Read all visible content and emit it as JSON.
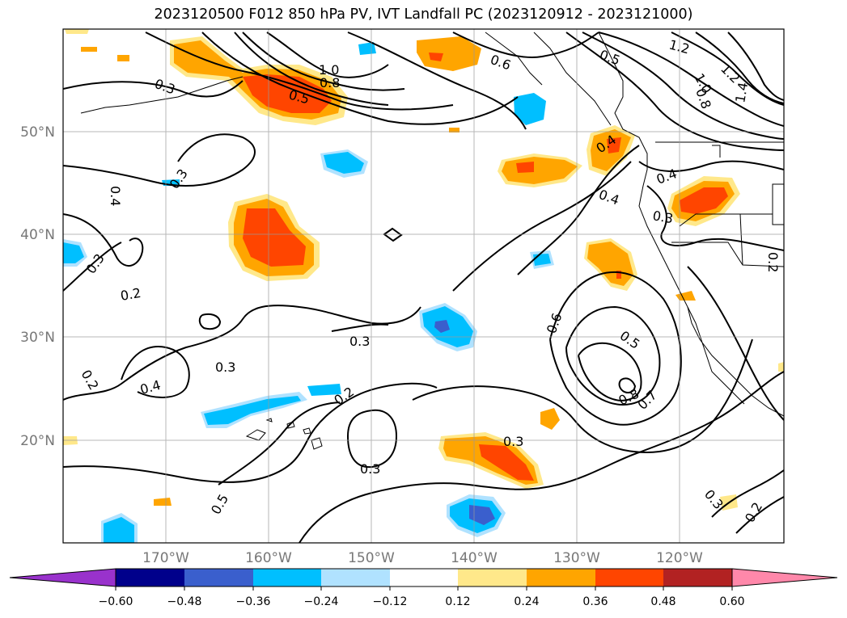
{
  "title": "2023120500 F012 850 hPa PV, IVT Landfall PC (2023120912 - 2023121000)",
  "lat_labels": [
    "50°N",
    "40°N",
    "30°N",
    "20°N"
  ],
  "lon_labels": [
    "170°W",
    "160°W",
    "150°W",
    "140°W",
    "130°W",
    "120°W"
  ],
  "contour_labels": [
    "1.2",
    "1.0",
    "0.8",
    "0.5",
    "0.6",
    "0.3",
    "0.4",
    "0.3",
    "0.4",
    "0.3",
    "0.2",
    "0.3",
    "0.4",
    "0.3",
    "0.2",
    "0.3",
    "0.2",
    "0.3",
    "0.6",
    "0.5",
    "0.8",
    "0.7",
    "0.4",
    "0.5",
    "0.3",
    "0.4",
    "0.2",
    "0.3",
    "1.2",
    "1.0",
    "0.8",
    "1.4",
    "0.5",
    "0.2"
  ],
  "colorbar": {
    "ticks": [
      "−0.60",
      "−0.48",
      "−0.36",
      "−0.24",
      "−0.12",
      "0.12",
      "0.24",
      "0.36",
      "0.48",
      "0.60"
    ],
    "colors": [
      "#9932cc",
      "#00008b",
      "#3a5fcd",
      "#00bfff",
      "#b0e2ff",
      "#ffffff",
      "#ffe88a",
      "#ffa500",
      "#ff4500",
      "#b22222",
      "#ff88aa"
    ]
  },
  "fill_colors": {
    "yellow": "#ffe88a",
    "orange": "#ffa500",
    "red": "#ff4500",
    "lightblue": "#b0e2ff",
    "blue": "#00bfff",
    "darkblue": "#3a5fcd"
  }
}
